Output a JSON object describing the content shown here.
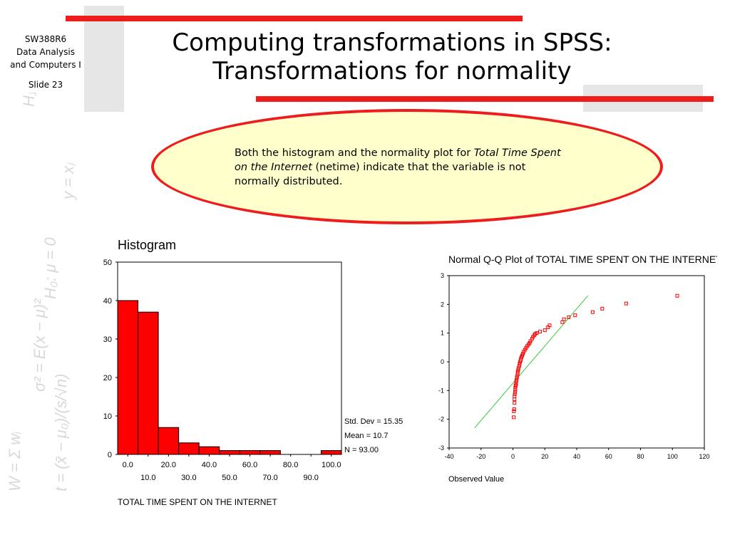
{
  "slide": {
    "course_code": "SW388R6",
    "course_name_1": "Data Analysis",
    "course_name_2": "and Computers I",
    "slide_number": "Slide 23",
    "title_line1": "Computing transformations in SPSS:",
    "title_line2": "Transformations for normality",
    "callout": {
      "prefix": "Both the histogram and the normality plot for ",
      "italic": "Total Time Spent on the Internet",
      "suffix": " (netime) indicate that the variable is not normally distributed."
    },
    "colors": {
      "accent_red": "#ee1c1c",
      "callout_fill": "#ffffcc",
      "deco_gray": "#e6e6e6",
      "qq_line": "#33cc33"
    },
    "watermark_formulas": [
      "H₁: μ < 0",
      "H₀: μ = 0",
      "W = Σ wᵢ",
      "t = (x̄ − μ₀)/(s/√n)",
      "σ² = E(x − μ)²",
      "y = xⱼ"
    ]
  },
  "chart_data": [
    {
      "type": "bar",
      "title": "Histogram",
      "xlabel": "TOTAL TIME SPENT ON THE INTERNET",
      "ylabel": "",
      "ylim": [
        0,
        50
      ],
      "yticks": [
        0,
        10,
        20,
        30,
        40,
        50
      ],
      "xlim": [
        -5,
        105
      ],
      "bin_width": 10,
      "bin_centers": [
        0,
        10,
        20,
        30,
        40,
        50,
        60,
        70,
        80,
        90,
        100
      ],
      "values": [
        40,
        37,
        7,
        3,
        2,
        1,
        1,
        1,
        0,
        0,
        1
      ],
      "tick_labels_row1": [
        [
          "0.0",
          0
        ],
        [
          "20.0",
          20
        ],
        [
          "40.0",
          40
        ],
        [
          "60.0",
          60
        ],
        [
          "80.0",
          80
        ],
        [
          "100.0",
          100
        ]
      ],
      "tick_labels_row2": [
        [
          "10.0",
          10
        ],
        [
          "30.0",
          30
        ],
        [
          "50.0",
          50
        ],
        [
          "70.0",
          70
        ],
        [
          "90.0",
          90
        ]
      ],
      "stats": [
        "Std. Dev = 15.35",
        "Mean = 10.7",
        "N = 93.00"
      ],
      "grid": false
    },
    {
      "type": "scatter",
      "title": "Normal Q-Q Plot of TOTAL TIME SPENT ON THE INTERNET",
      "xlabel": "Observed Value",
      "ylabel": "",
      "xlim": [
        -40,
        120
      ],
      "ylim": [
        -3,
        3
      ],
      "xticks": [
        -40,
        -20,
        0,
        20,
        40,
        60,
        80,
        100,
        120
      ],
      "yticks": [
        -3,
        -2,
        -1,
        0,
        1,
        2,
        3
      ],
      "grid": false,
      "reference_line": {
        "x": [
          -24,
          47
        ],
        "y": [
          -2.3,
          2.3
        ]
      },
      "points": [
        [
          0.5,
          -1.93
        ],
        [
          0.6,
          -1.72
        ],
        [
          0.8,
          -1.65
        ],
        [
          1,
          -1.43
        ],
        [
          1,
          -1.3
        ],
        [
          1,
          -1.2
        ],
        [
          1.2,
          -1.12
        ],
        [
          1.3,
          -1.05
        ],
        [
          1.5,
          -0.97
        ],
        [
          1.5,
          -0.9
        ],
        [
          1.7,
          -0.83
        ],
        [
          2,
          -0.77
        ],
        [
          2,
          -0.7
        ],
        [
          2.2,
          -0.64
        ],
        [
          2.5,
          -0.56
        ],
        [
          2.6,
          -0.5
        ],
        [
          3,
          -0.42
        ],
        [
          3,
          -0.35
        ],
        [
          3.3,
          -0.28
        ],
        [
          3.5,
          -0.22
        ],
        [
          4,
          -0.14
        ],
        [
          4.2,
          -0.07
        ],
        [
          4.5,
          0
        ],
        [
          4.8,
          0.05
        ],
        [
          5,
          0.1
        ],
        [
          5.3,
          0.16
        ],
        [
          5.8,
          0.22
        ],
        [
          6.2,
          0.28
        ],
        [
          6.8,
          0.35
        ],
        [
          7.5,
          0.42
        ],
        [
          8.2,
          0.48
        ],
        [
          9,
          0.55
        ],
        [
          9.8,
          0.6
        ],
        [
          10.5,
          0.66
        ],
        [
          11,
          0.72
        ],
        [
          12,
          0.8
        ],
        [
          12.6,
          0.87
        ],
        [
          13.5,
          0.93
        ],
        [
          14,
          0.98
        ],
        [
          15,
          1.0
        ],
        [
          17,
          1.05
        ],
        [
          20,
          1.1
        ],
        [
          22,
          1.2
        ],
        [
          23,
          1.27
        ],
        [
          31,
          1.38
        ],
        [
          32,
          1.48
        ],
        [
          35,
          1.55
        ],
        [
          39,
          1.62
        ],
        [
          50,
          1.73
        ],
        [
          56,
          1.85
        ],
        [
          71,
          2.03
        ],
        [
          103,
          2.3
        ]
      ]
    }
  ]
}
